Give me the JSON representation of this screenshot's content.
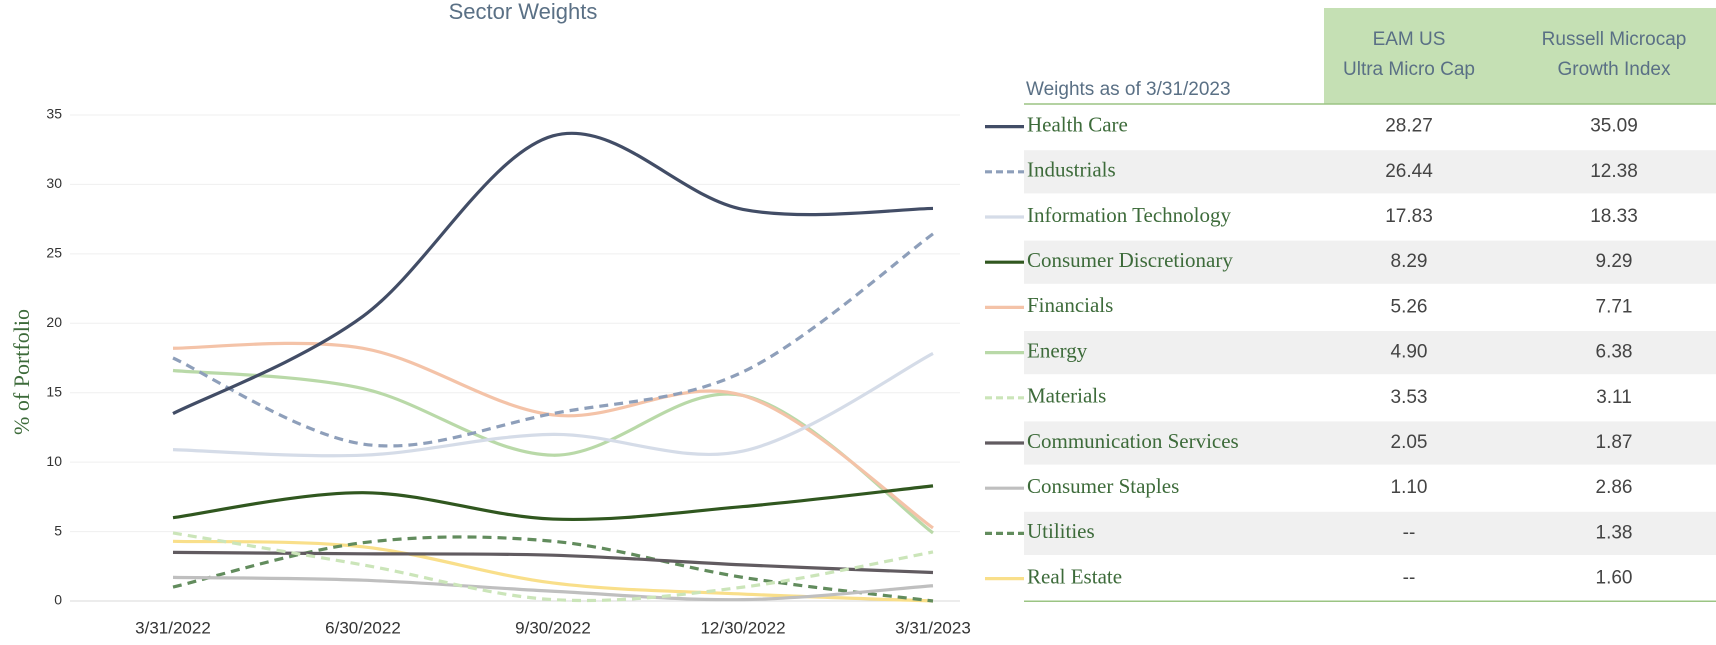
{
  "chart_data": {
    "type": "line",
    "title": "Sector Weights",
    "y_label": "% of Portfolio",
    "categories": [
      "3/31/2022",
      "6/30/2022",
      "9/30/2022",
      "12/30/2022",
      "3/31/2023"
    ],
    "ylim": [
      0,
      35
    ],
    "yticks": [
      0,
      5,
      10,
      15,
      20,
      25,
      30,
      35
    ],
    "grid": true,
    "series": [
      {
        "name": "Health Care",
        "color": "#424d66",
        "dash": false,
        "values": [
          13.5,
          20.5,
          33.5,
          28.2,
          28.27
        ]
      },
      {
        "name": "Industrials",
        "color": "#8e9fba",
        "dash": true,
        "values": [
          17.5,
          11.3,
          13.5,
          16.5,
          26.44
        ]
      },
      {
        "name": "Information Technology",
        "color": "#d5dce8",
        "dash": false,
        "values": [
          10.9,
          10.5,
          12.0,
          10.8,
          17.83
        ]
      },
      {
        "name": "Consumer Discretionary",
        "color": "#30571f",
        "dash": false,
        "values": [
          6.0,
          7.8,
          5.9,
          6.8,
          8.29
        ]
      },
      {
        "name": "Financials",
        "color": "#f4c3a8",
        "dash": false,
        "values": [
          18.2,
          18.2,
          13.4,
          14.8,
          5.26
        ]
      },
      {
        "name": "Energy",
        "color": "#b9d9a8",
        "dash": false,
        "values": [
          16.6,
          15.3,
          10.5,
          14.8,
          4.9
        ]
      },
      {
        "name": "Materials",
        "color": "#cbe5b9",
        "dash": true,
        "values": [
          4.9,
          2.6,
          0.1,
          1.0,
          3.53
        ]
      },
      {
        "name": "Communication Services",
        "color": "#615b60",
        "dash": false,
        "values": [
          3.5,
          3.4,
          3.3,
          2.6,
          2.05
        ]
      },
      {
        "name": "Consumer Staples",
        "color": "#bfbfbf",
        "dash": false,
        "values": [
          1.7,
          1.5,
          0.7,
          0.1,
          1.1
        ]
      },
      {
        "name": "Utilities",
        "color": "#628c5d",
        "dash": true,
        "values": [
          1.0,
          4.2,
          4.3,
          1.7,
          0
        ]
      },
      {
        "name": "Real Estate",
        "color": "#f9df8a",
        "dash": false,
        "values": [
          4.3,
          3.9,
          1.3,
          0.5,
          0
        ]
      }
    ]
  },
  "table": {
    "caption": "Weights as of 3/31/2023",
    "columns": [
      [
        "EAM US",
        "Ultra Micro Cap"
      ],
      [
        "Russell Microcap",
        "Growth Index"
      ]
    ],
    "rows": [
      [
        "28.27",
        "35.09"
      ],
      [
        "26.44",
        "12.38"
      ],
      [
        "17.83",
        "18.33"
      ],
      [
        "8.29",
        "9.29"
      ],
      [
        "5.26",
        "7.71"
      ],
      [
        "4.90",
        "6.38"
      ],
      [
        "3.53",
        "3.11"
      ],
      [
        "2.05",
        "1.87"
      ],
      [
        "1.10",
        "2.86"
      ],
      [
        "--",
        "1.38"
      ],
      [
        "--",
        "1.60"
      ]
    ]
  }
}
